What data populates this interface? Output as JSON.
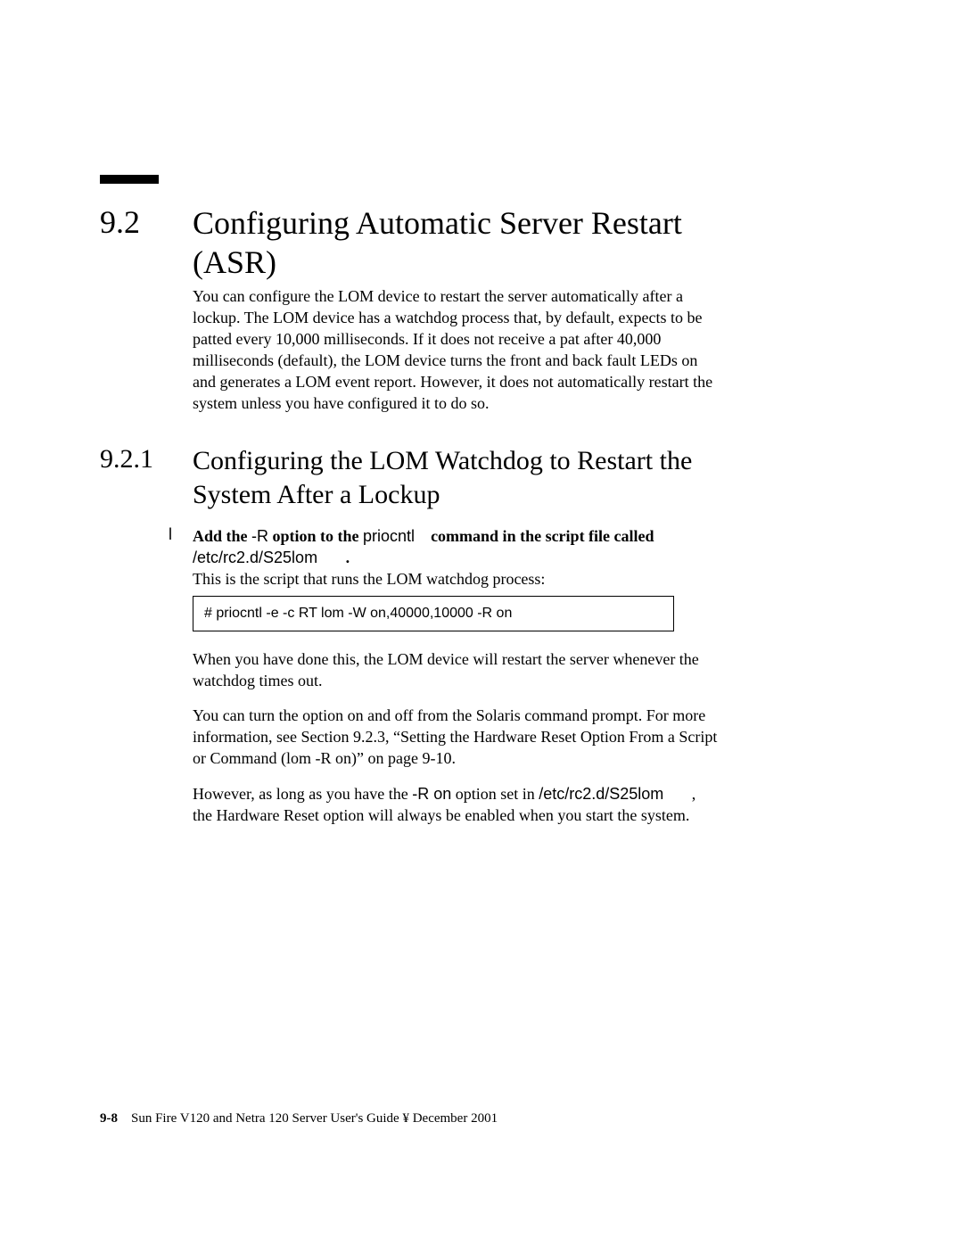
{
  "section1": {
    "number": "9.2",
    "title": "Configuring Automatic Server Restart (ASR)",
    "intro": "You can configure the LOM device to restart the server automatically after a lockup. The LOM device has a watchdog process that, by default, expects to be patted every 10,000 milliseconds. If it does not receive a pat after 40,000 milliseconds (default), the LOM device turns the front and back fault LEDs on and generates a LOM event report. However, it does not automatically restart the system unless you have configured it to do so."
  },
  "section2": {
    "number": "9.2.1",
    "title": "Configuring the LOM Watchdog to Restart the System After a Lockup"
  },
  "step": {
    "bullet": "l",
    "b1": "Add the ",
    "opt": "-R",
    "b2": " option to the ",
    "cmd": "priocntl",
    "b3": "command in the script file called",
    "path": "/etc/rc2.d/S25lom",
    "dot": ".",
    "desc": "This is the script that runs the LOM watchdog process:"
  },
  "code": "#  priocntl -e -c RT lom -W on,40000,10000 -R on",
  "para2": "When you have done this, the LOM device will restart the server whenever the watchdog times out.",
  "para3": "You can turn the option on and off from the Solaris command prompt. For more information, see Section 9.2.3, “Setting the Hardware Reset Option From a Script or Command (lom -R on)” on page 9-10.",
  "para4": {
    "t1": "However, as long as you have the ",
    "opt": "-R on",
    "t2": " option set in ",
    "path": "/etc/rc2.d/S25lom",
    "t3": ", the Hardware Reset option will always be enabled when you start the system."
  },
  "footer": {
    "page": "9-8",
    "text": "Sun Fire V120 and Netra 120 Server User's Guide ¥ December 2001"
  }
}
